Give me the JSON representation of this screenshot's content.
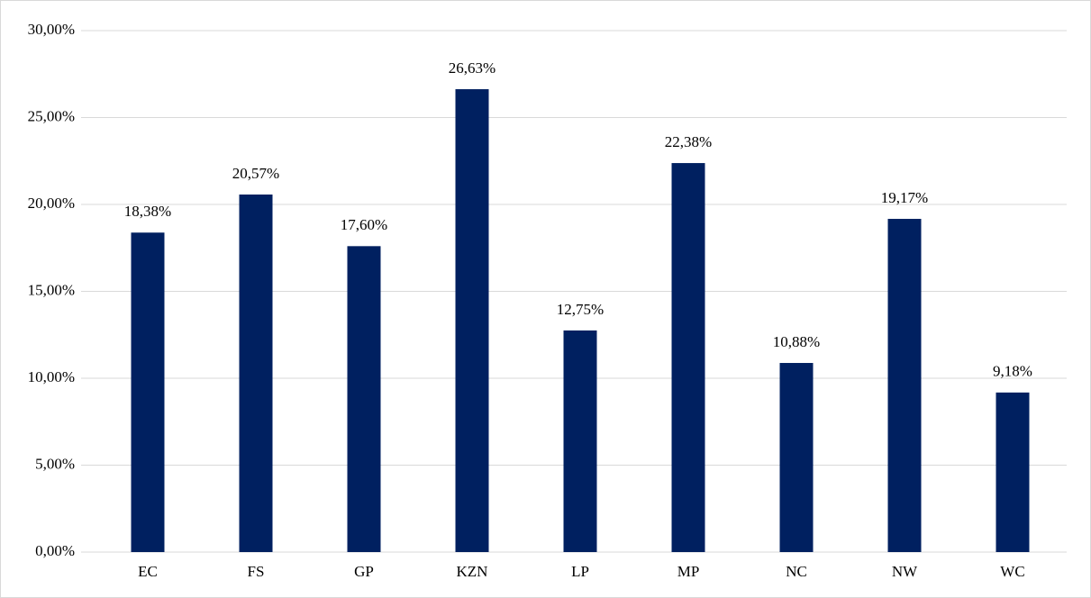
{
  "chart_data": {
    "type": "bar",
    "categories": [
      "EC",
      "FS",
      "GP",
      "KZN",
      "LP",
      "MP",
      "NC",
      "NW",
      "WC"
    ],
    "values": [
      18.38,
      20.57,
      17.6,
      26.63,
      12.75,
      22.38,
      10.88,
      19.17,
      9.18
    ],
    "value_labels": [
      "18,38%",
      "20,57%",
      "17,60%",
      "26,63%",
      "12,75%",
      "22,38%",
      "10,88%",
      "19,17%",
      "9,18%"
    ],
    "color": "#002060",
    "ylim": [
      0,
      30
    ],
    "yticks": [
      {
        "value": 0,
        "label": "0,00%"
      },
      {
        "value": 5,
        "label": "5,00%"
      },
      {
        "value": 10,
        "label": "10,00%"
      },
      {
        "value": 15,
        "label": "15,00%"
      },
      {
        "value": 20,
        "label": "20,00%"
      },
      {
        "value": 25,
        "label": "25,00%"
      },
      {
        "value": 30,
        "label": "30,00%"
      }
    ],
    "grid": true
  }
}
